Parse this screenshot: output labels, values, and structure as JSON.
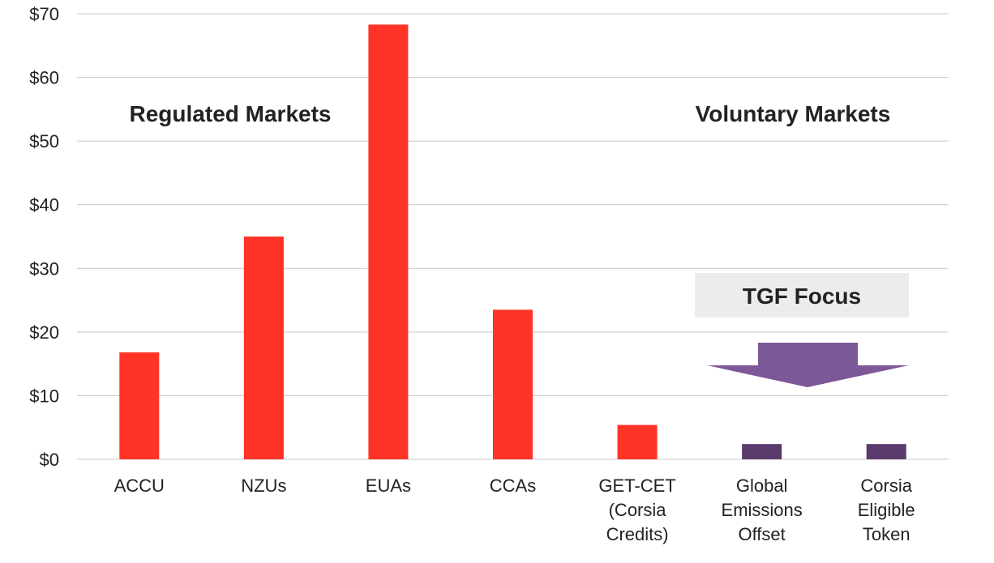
{
  "chart_data": {
    "type": "bar",
    "categories": [
      [
        "ACCU"
      ],
      [
        "NZUs"
      ],
      [
        "EUAs"
      ],
      [
        "CCAs"
      ],
      [
        "GET-CET",
        "(Corsia",
        "Credits)"
      ],
      [
        "Global",
        "Emissions",
        "Offset"
      ],
      [
        "Corsia",
        "Eligible",
        "Token"
      ]
    ],
    "values": [
      16.8,
      35,
      68.3,
      23.5,
      5.4,
      2.4,
      2.4
    ],
    "bar_colors": [
      "#ff3326",
      "#ff3326",
      "#ff3326",
      "#ff3326",
      "#ff3326",
      "#5b3a6e",
      "#5b3a6e"
    ],
    "ylim": [
      0,
      70
    ],
    "yticks": [
      0,
      10,
      20,
      30,
      40,
      50,
      60,
      70
    ],
    "ytick_labels": [
      "$0",
      "$10",
      "$20",
      "$30",
      "$40",
      "$50",
      "$60",
      "$70"
    ],
    "grid": true,
    "annotations": {
      "regulated": "Regulated Markets",
      "voluntary": "Voluntary Markets",
      "focus": "TGF Focus"
    },
    "colors": {
      "regulated_bar": "#ff3326",
      "voluntary_bar": "#5b3a6e",
      "arrow": "#7d5898",
      "focus_box": "#ececec",
      "grid": "#c8c8c8"
    }
  }
}
